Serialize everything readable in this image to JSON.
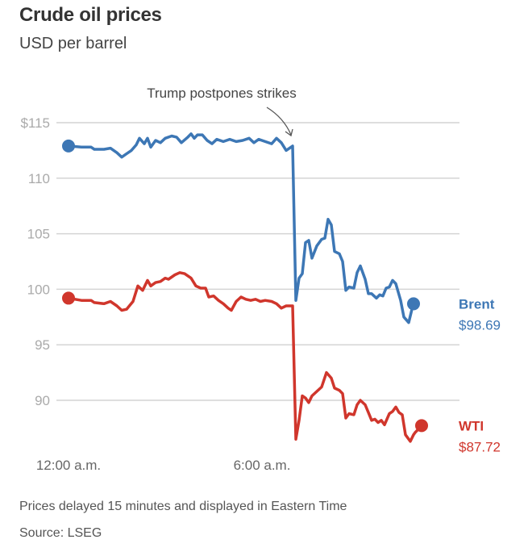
{
  "header": {
    "title": "Crude oil prices",
    "subtitle": "USD per barrel"
  },
  "footer": {
    "note": "Prices delayed 15 minutes and displayed in Eastern Time",
    "source": "Source: LSEG"
  },
  "chart_data": {
    "type": "line",
    "title": "Crude oil prices",
    "subtitle": "USD per barrel",
    "xlabel": "",
    "ylabel": "USD per barrel",
    "ylim": [
      87,
      116
    ],
    "xlim": [
      0,
      9
    ],
    "grid": true,
    "yticks": [
      {
        "v": 115,
        "label": "$115"
      },
      {
        "v": 110,
        "label": "110"
      },
      {
        "v": 105,
        "label": "105"
      },
      {
        "v": 100,
        "label": "100"
      },
      {
        "v": 95,
        "label": "95"
      },
      {
        "v": 90,
        "label": "90"
      }
    ],
    "xticks": [
      {
        "v": 0,
        "label": "12:00 a.m."
      },
      {
        "v": 6,
        "label": "6:00 a.m."
      }
    ],
    "annotation": {
      "text": "Trump postpones strikes",
      "x": 7.05,
      "y": 113.2
    },
    "series": [
      {
        "name": "Brent",
        "color": "#3d77b5",
        "last_label": "$98.69",
        "points": [
          [
            0,
            112.9
          ],
          [
            0.4,
            112.8
          ],
          [
            0.7,
            112.8
          ],
          [
            0.8,
            112.6
          ],
          [
            1.1,
            112.6
          ],
          [
            1.3,
            112.7
          ],
          [
            1.5,
            112.3
          ],
          [
            1.65,
            111.9
          ],
          [
            1.8,
            112.2
          ],
          [
            1.95,
            112.5
          ],
          [
            2.1,
            113.0
          ],
          [
            2.2,
            113.6
          ],
          [
            2.35,
            113.1
          ],
          [
            2.45,
            113.6
          ],
          [
            2.55,
            112.8
          ],
          [
            2.7,
            113.4
          ],
          [
            2.85,
            113.2
          ],
          [
            3.0,
            113.6
          ],
          [
            3.2,
            113.8
          ],
          [
            3.35,
            113.7
          ],
          [
            3.5,
            113.2
          ],
          [
            3.7,
            113.7
          ],
          [
            3.8,
            114.0
          ],
          [
            3.9,
            113.6
          ],
          [
            4.0,
            113.9
          ],
          [
            4.15,
            113.9
          ],
          [
            4.3,
            113.4
          ],
          [
            4.45,
            113.1
          ],
          [
            4.6,
            113.5
          ],
          [
            4.8,
            113.3
          ],
          [
            5.0,
            113.5
          ],
          [
            5.2,
            113.3
          ],
          [
            5.4,
            113.4
          ],
          [
            5.6,
            113.6
          ],
          [
            5.75,
            113.2
          ],
          [
            5.9,
            113.5
          ],
          [
            6.1,
            113.3
          ],
          [
            6.3,
            113.1
          ],
          [
            6.45,
            113.6
          ],
          [
            6.6,
            113.2
          ],
          [
            6.75,
            112.5
          ],
          [
            6.95,
            112.9
          ],
          [
            7.05,
            99.0
          ],
          [
            7.15,
            101.0
          ],
          [
            7.25,
            101.4
          ],
          [
            7.35,
            104.2
          ],
          [
            7.45,
            104.4
          ],
          [
            7.55,
            102.8
          ],
          [
            7.7,
            103.9
          ],
          [
            7.85,
            104.5
          ],
          [
            7.95,
            104.6
          ],
          [
            8.05,
            106.3
          ],
          [
            8.15,
            105.8
          ],
          [
            8.25,
            103.4
          ],
          [
            8.4,
            103.2
          ],
          [
            8.5,
            102.5
          ],
          [
            8.6,
            99.9
          ],
          [
            8.7,
            100.2
          ],
          [
            8.85,
            100.1
          ],
          [
            8.95,
            101.5
          ],
          [
            9.05,
            102.1
          ],
          [
            9.2,
            100.9
          ],
          [
            9.3,
            99.6
          ],
          [
            9.4,
            99.6
          ],
          [
            9.55,
            99.2
          ],
          [
            9.65,
            99.5
          ],
          [
            9.75,
            99.4
          ],
          [
            9.85,
            100.1
          ],
          [
            9.95,
            100.2
          ],
          [
            10.05,
            100.8
          ],
          [
            10.15,
            100.5
          ],
          [
            10.3,
            99.0
          ],
          [
            10.4,
            97.5
          ],
          [
            10.55,
            97.0
          ],
          [
            10.65,
            98.2
          ],
          [
            10.7,
            98.69
          ]
        ]
      },
      {
        "name": "WTI",
        "color": "#d0362c",
        "last_label": "$87.72",
        "points": [
          [
            0,
            99.2
          ],
          [
            0.4,
            99.0
          ],
          [
            0.7,
            99.0
          ],
          [
            0.8,
            98.8
          ],
          [
            1.1,
            98.7
          ],
          [
            1.3,
            98.9
          ],
          [
            1.5,
            98.5
          ],
          [
            1.65,
            98.1
          ],
          [
            1.8,
            98.2
          ],
          [
            2.0,
            98.9
          ],
          [
            2.15,
            100.3
          ],
          [
            2.3,
            99.9
          ],
          [
            2.45,
            100.8
          ],
          [
            2.55,
            100.3
          ],
          [
            2.7,
            100.6
          ],
          [
            2.85,
            100.7
          ],
          [
            3.0,
            101.0
          ],
          [
            3.1,
            100.9
          ],
          [
            3.3,
            101.3
          ],
          [
            3.45,
            101.5
          ],
          [
            3.6,
            101.4
          ],
          [
            3.8,
            101.0
          ],
          [
            3.95,
            100.3
          ],
          [
            4.1,
            100.1
          ],
          [
            4.25,
            100.1
          ],
          [
            4.35,
            99.3
          ],
          [
            4.5,
            99.4
          ],
          [
            4.65,
            99.0
          ],
          [
            4.8,
            98.7
          ],
          [
            4.95,
            98.3
          ],
          [
            5.05,
            98.1
          ],
          [
            5.2,
            98.9
          ],
          [
            5.35,
            99.3
          ],
          [
            5.5,
            99.1
          ],
          [
            5.65,
            99.0
          ],
          [
            5.8,
            99.1
          ],
          [
            5.95,
            98.9
          ],
          [
            6.1,
            99.0
          ],
          [
            6.3,
            98.9
          ],
          [
            6.45,
            98.7
          ],
          [
            6.6,
            98.3
          ],
          [
            6.75,
            98.5
          ],
          [
            6.95,
            98.5
          ],
          [
            7.05,
            86.5
          ],
          [
            7.15,
            88.2
          ],
          [
            7.25,
            90.4
          ],
          [
            7.35,
            90.2
          ],
          [
            7.45,
            89.8
          ],
          [
            7.55,
            90.4
          ],
          [
            7.7,
            90.8
          ],
          [
            7.85,
            91.2
          ],
          [
            8.0,
            92.5
          ],
          [
            8.15,
            92.0
          ],
          [
            8.25,
            91.1
          ],
          [
            8.4,
            90.9
          ],
          [
            8.5,
            90.6
          ],
          [
            8.6,
            88.4
          ],
          [
            8.7,
            88.8
          ],
          [
            8.85,
            88.7
          ],
          [
            8.95,
            89.6
          ],
          [
            9.05,
            90.0
          ],
          [
            9.2,
            89.6
          ],
          [
            9.3,
            88.9
          ],
          [
            9.4,
            88.2
          ],
          [
            9.5,
            88.3
          ],
          [
            9.6,
            88.0
          ],
          [
            9.7,
            88.2
          ],
          [
            9.8,
            87.8
          ],
          [
            9.95,
            88.8
          ],
          [
            10.05,
            89.0
          ],
          [
            10.15,
            89.4
          ],
          [
            10.25,
            88.9
          ],
          [
            10.35,
            88.7
          ],
          [
            10.45,
            86.9
          ],
          [
            10.6,
            86.3
          ],
          [
            10.7,
            86.9
          ],
          [
            10.75,
            87.1
          ],
          [
            10.85,
            87.4
          ],
          [
            10.95,
            87.72
          ]
        ]
      }
    ]
  }
}
